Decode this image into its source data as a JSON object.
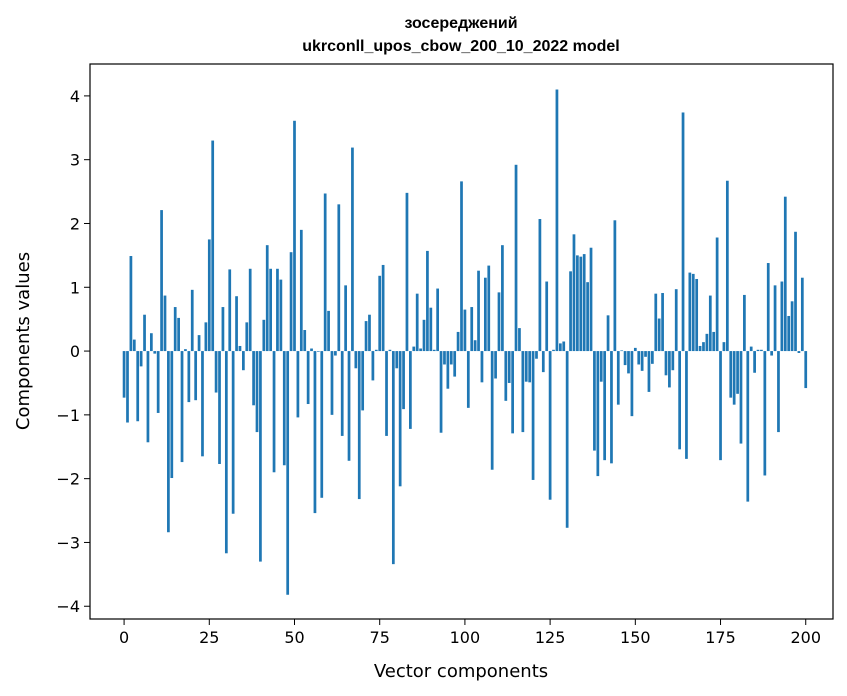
{
  "chart_data": {
    "type": "bar",
    "title": "зосереджений",
    "subtitle": "ukrconll_upos_cbow_200_10_2022 model",
    "xlabel": "Vector components",
    "ylabel": "Components values",
    "xlim": [
      -10,
      208
    ],
    "ylim": [
      -4.2,
      4.5
    ],
    "xticks": [
      0,
      25,
      50,
      75,
      100,
      125,
      150,
      175,
      200
    ],
    "yticks": [
      -4,
      -3,
      -2,
      -1,
      0,
      1,
      2,
      3,
      4
    ],
    "xtick_labels": [
      "0",
      "25",
      "50",
      "75",
      "100",
      "125",
      "150",
      "175",
      "200"
    ],
    "ytick_labels": [
      "−4",
      "−3",
      "−2",
      "−1",
      "0",
      "1",
      "2",
      "3",
      "4"
    ],
    "grid": false,
    "legend": "none",
    "bar_color": "#1f77b4",
    "values": [
      -0.73,
      -1.12,
      1.49,
      0.18,
      -1.1,
      -0.24,
      0.57,
      -1.43,
      0.28,
      -0.04,
      -0.97,
      2.21,
      0.87,
      -2.84,
      -1.99,
      0.69,
      0.52,
      -1.74,
      0.03,
      -0.8,
      0.96,
      -0.77,
      0.25,
      -1.65,
      0.45,
      1.75,
      3.3,
      -0.65,
      -1.77,
      0.69,
      -3.17,
      1.28,
      -2.55,
      0.86,
      0.08,
      -0.3,
      0.45,
      1.29,
      -0.85,
      -1.27,
      -3.3,
      0.49,
      1.66,
      1.29,
      -1.9,
      1.29,
      1.12,
      -1.79,
      -3.82,
      1.55,
      3.61,
      -1.04,
      1.9,
      0.33,
      -0.83,
      0.04,
      -2.54,
      -0.01,
      -2.3,
      2.47,
      0.63,
      -1.0,
      -0.07,
      2.3,
      -1.33,
      1.03,
      -1.72,
      3.19,
      -0.27,
      -2.32,
      -0.93,
      0.47,
      0.57,
      -0.46,
      0.02,
      1.18,
      1.35,
      -1.33,
      0.02,
      -3.34,
      -0.27,
      -2.12,
      -0.91,
      2.48,
      -1.22,
      0.07,
      0.9,
      0.04,
      0.49,
      1.57,
      0.68,
      0.02,
      0.98,
      -1.28,
      -0.21,
      -0.59,
      -0.21,
      -0.4,
      0.3,
      2.66,
      0.65,
      -0.89,
      0.69,
      0.17,
      1.26,
      -0.49,
      1.15,
      1.34,
      -1.86,
      -0.43,
      0.92,
      1.66,
      -0.78,
      -0.5,
      -1.29,
      2.92,
      0.36,
      -1.27,
      -0.48,
      -0.49,
      -2.02,
      -0.12,
      2.07,
      -0.33,
      1.09,
      -2.33,
      0.02,
      4.1,
      0.12,
      0.15,
      -2.77,
      1.25,
      1.83,
      1.5,
      1.48,
      1.52,
      1.08,
      1.62,
      -1.56,
      -1.96,
      -0.48,
      -1.71,
      0.56,
      -1.76,
      2.05,
      -0.84,
      0.01,
      -0.22,
      -0.35,
      -1.02,
      0.05,
      -0.21,
      -0.31,
      -0.09,
      -0.64,
      -0.2,
      0.9,
      0.51,
      0.91,
      -0.38,
      -0.57,
      -0.3,
      0.97,
      -1.54,
      3.74,
      -1.69,
      1.23,
      1.21,
      1.13,
      0.08,
      0.14,
      0.27,
      0.87,
      0.3,
      1.78,
      -1.71,
      0.14,
      2.67,
      -0.73,
      -0.84,
      -0.67,
      -1.45,
      0.88,
      -2.36,
      0.07,
      -0.34,
      0.02,
      0.02,
      -1.95,
      1.38,
      -0.07,
      1.03,
      -1.27,
      1.09,
      2.42,
      0.55,
      0.78,
      1.87,
      -0.03,
      1.15,
      -0.58
    ]
  }
}
